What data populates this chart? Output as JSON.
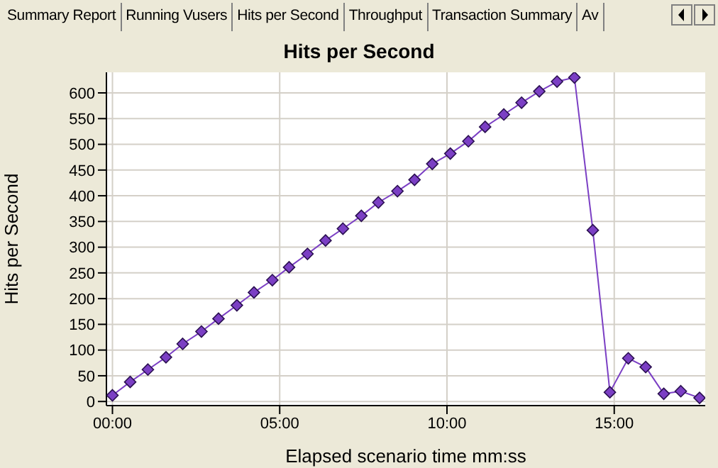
{
  "chart_data": {
    "type": "line",
    "title": "Hits per Second",
    "xlabel": "Elapsed scenario time mm:ss",
    "ylabel": "Hits per Second",
    "annotations": [
      "Summary Report",
      "Running Vusers",
      "Hits per Second",
      "Throughput",
      "Transaction Summary",
      "Av"
    ],
    "x": [
      0,
      0.53,
      1.06,
      1.6,
      2.1,
      2.66,
      3.17,
      3.72,
      4.23,
      4.78,
      5.28,
      5.83,
      6.37,
      6.89,
      7.44,
      7.95,
      8.52,
      9.03,
      9.56,
      10.1,
      10.64,
      11.14,
      11.7,
      12.23,
      12.76,
      13.29,
      13.81,
      14.36,
      14.87,
      15.42,
      15.94,
      16.48,
      16.99,
      17.55
    ],
    "series": [
      {
        "color": "#7b3fc4",
        "values": [
          12,
          38,
          62,
          86,
          112,
          136,
          161,
          187,
          212,
          236,
          261,
          287,
          313,
          336,
          361,
          387,
          409,
          431,
          462,
          482,
          506,
          534,
          558,
          581,
          603,
          622,
          630,
          333,
          18,
          84,
          67,
          15,
          20,
          7
        ]
      }
    ],
    "xlim": [
      -0.18,
      17.72
    ],
    "xticks": [
      {
        "value": 0,
        "label": "00:00"
      },
      {
        "value": 5,
        "label": "05:00"
      },
      {
        "value": 10,
        "label": "10:00"
      },
      {
        "value": 15,
        "label": "15:00"
      }
    ],
    "ylim": [
      -8,
      640
    ],
    "yticks": [
      0,
      50,
      100,
      150,
      200,
      250,
      300,
      350,
      400,
      450,
      500,
      550,
      600
    ],
    "grid": true,
    "marker": "diamond",
    "line_style": "solid"
  }
}
